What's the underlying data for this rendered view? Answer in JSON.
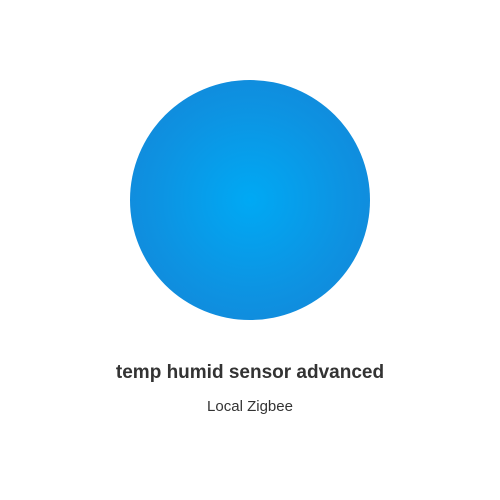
{
  "device": {
    "icon": "device-circle-icon",
    "icon_color": "#0d93e2",
    "name": "temp humid sensor advanced",
    "type": "Local Zigbee"
  }
}
